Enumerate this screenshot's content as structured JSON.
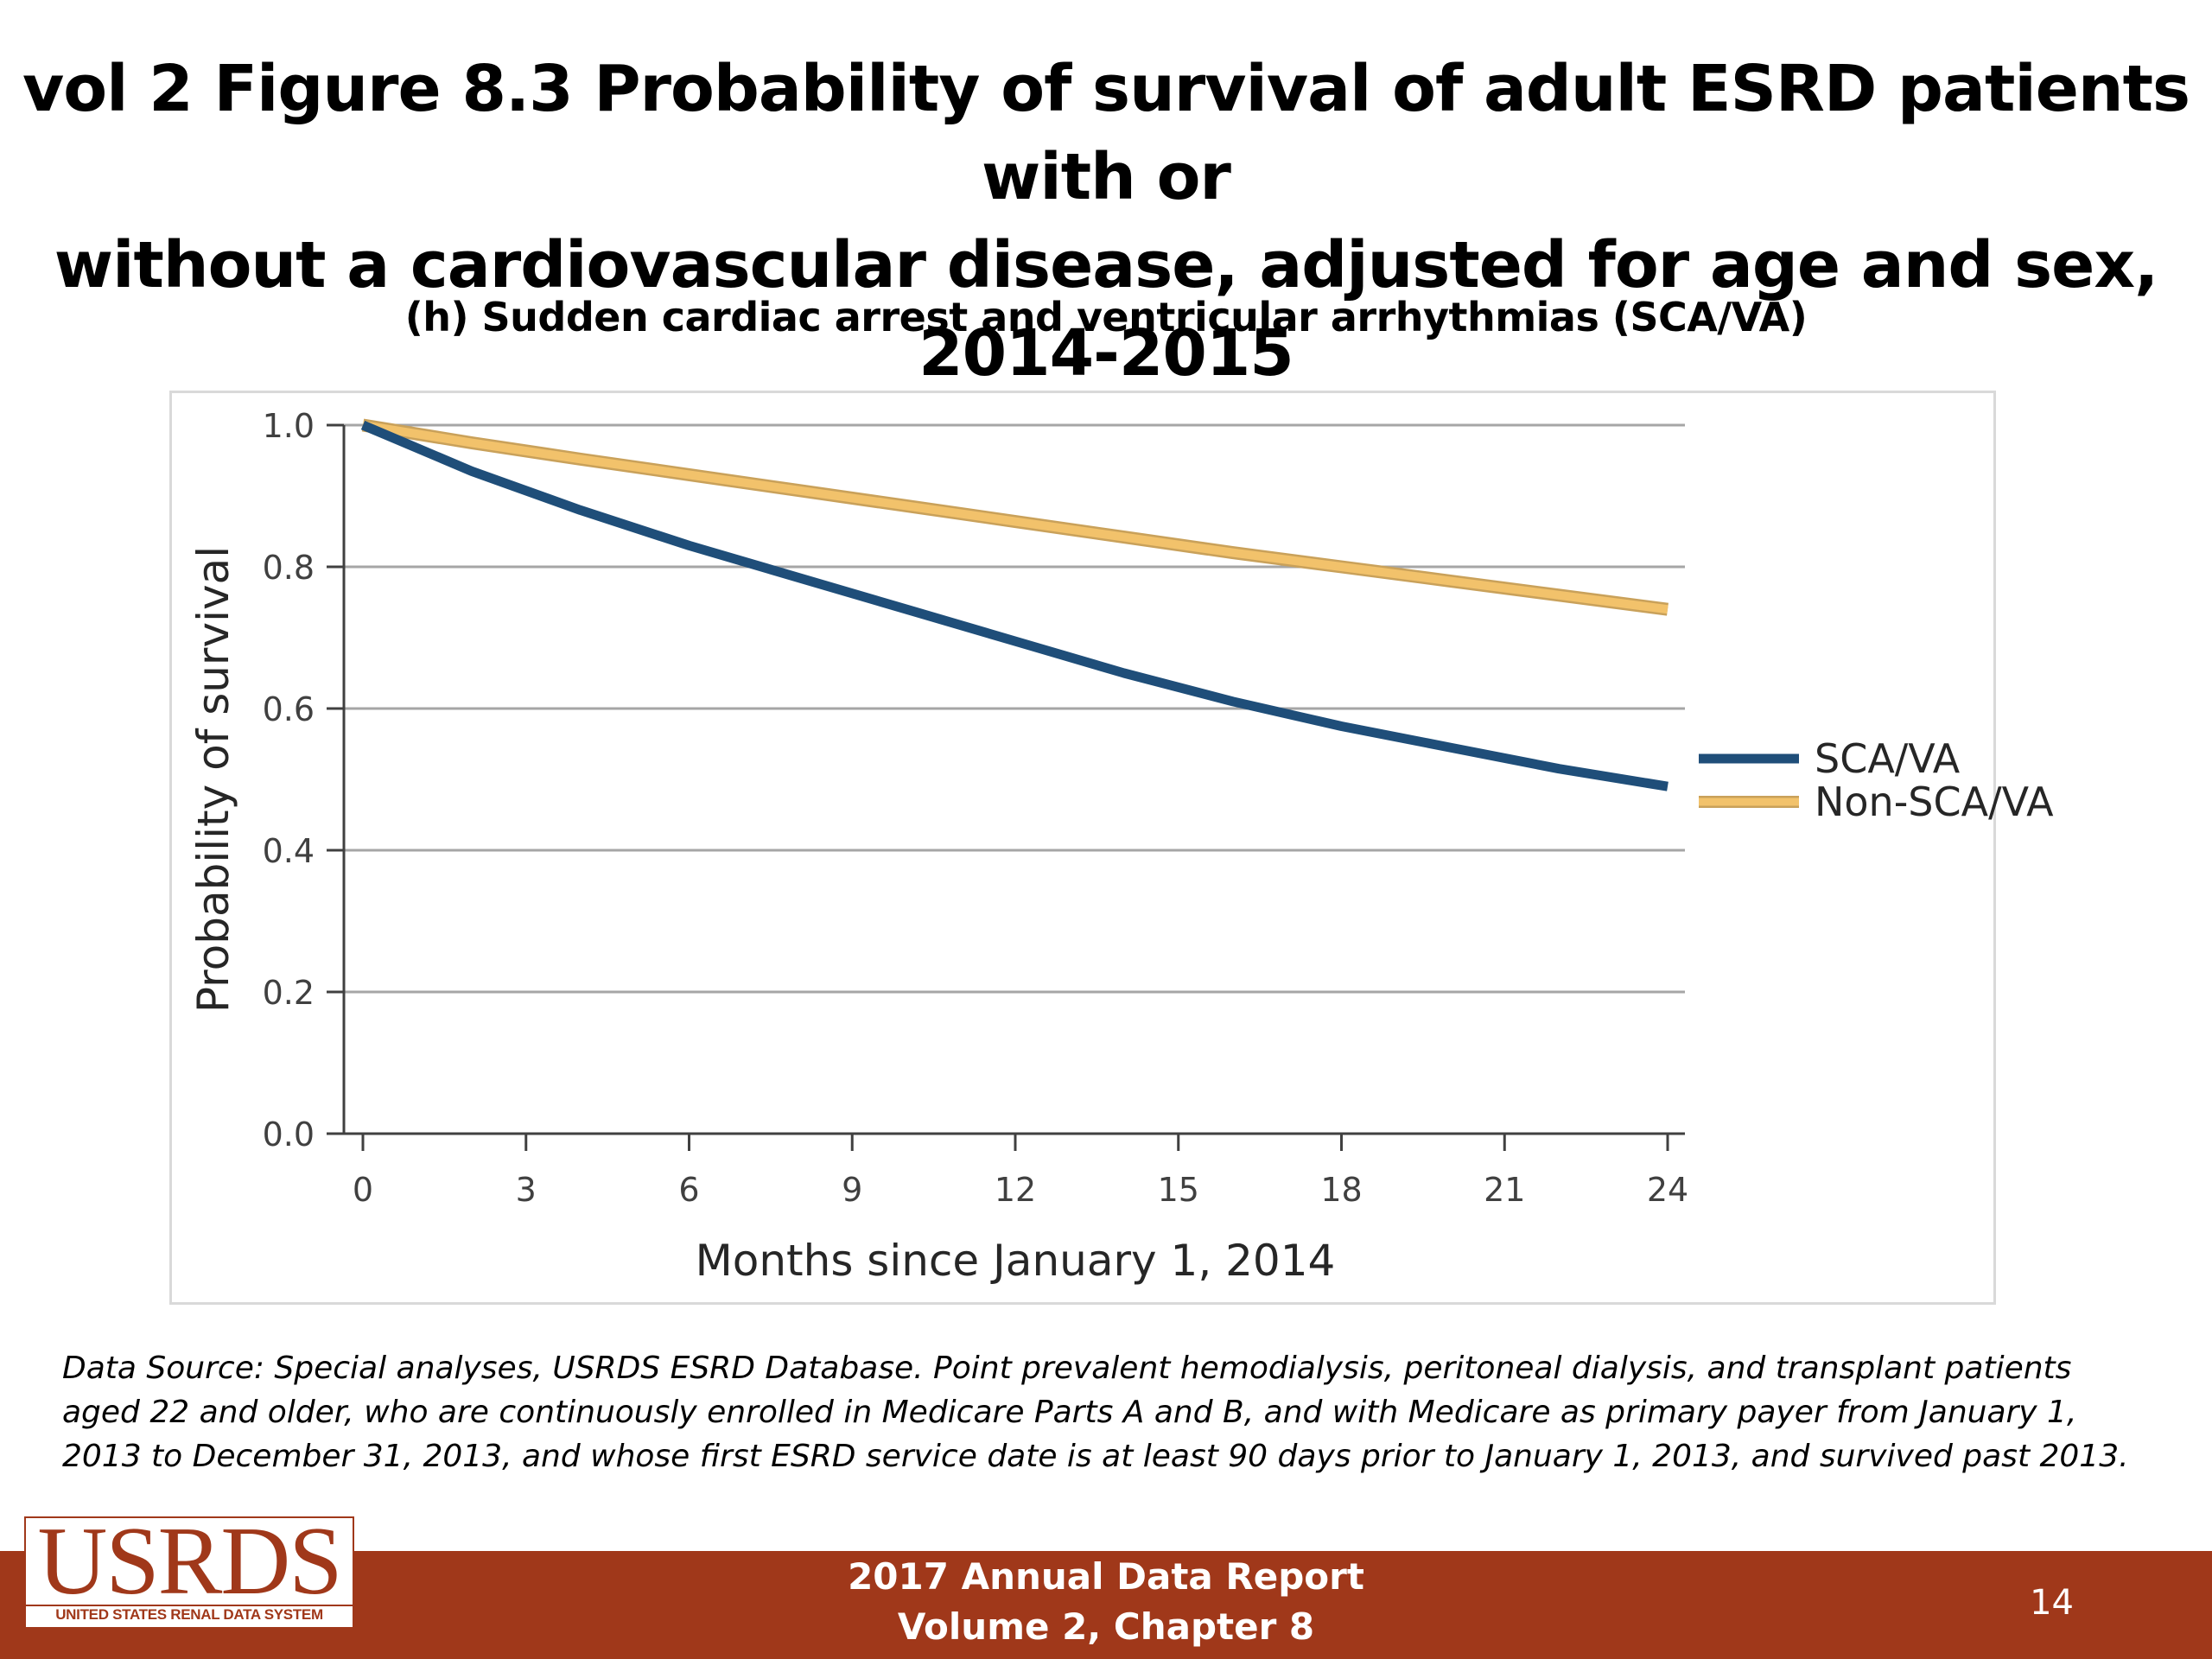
{
  "slide": {
    "title_line1": "vol 2 Figure 8.3 Probability of survival of adult ESRD patients with or",
    "title_line2": "without a cardiovascular disease, adjusted for age and sex, 2014-2015",
    "footnote": "Data Source: Special analyses, USRDS ESRD Database. Point prevalent hemodialysis, peritoneal dialysis, and transplant patients aged 22 and older, who are continuously enrolled in Medicare Parts A and B, and with Medicare as primary payer from January 1, 2013 to December 31, 2013, and whose first ESRD service date is at least 90 days prior to January 1, 2013, and survived past 2013.",
    "footer_line1": "2017 Annual Data Report",
    "footer_line2": "Volume 2, Chapter 8",
    "page_number": "14",
    "logo_text": "USRDS",
    "logo_subtext": "UNITED STATES RENAL DATA SYSTEM",
    "brand_color": "#a0381a"
  },
  "chart_data": {
    "type": "line",
    "title": "(h) Sudden cardiac arrest and ventricular arrhythmias (SCA/VA)",
    "xlabel": "Months since January 1, 2014",
    "ylabel": "Probability of survival",
    "xlim": [
      0,
      24
    ],
    "ylim": [
      0,
      1.0
    ],
    "xticks": [
      0,
      3,
      6,
      9,
      12,
      15,
      18,
      21,
      24
    ],
    "xtick_labels": [
      "0",
      "3",
      "6",
      "9",
      "12",
      "15",
      "18",
      "21",
      "24"
    ],
    "yticks": [
      0,
      0.2,
      0.4,
      0.6,
      0.8,
      1.0
    ],
    "ytick_labels": [
      "0.0",
      "0.2",
      "0.4",
      "0.6",
      "0.8",
      "1.0"
    ],
    "grid": true,
    "legend_position": "right",
    "x": [
      0,
      2,
      4,
      6,
      8,
      10,
      12,
      14,
      16,
      18,
      20,
      22,
      24
    ],
    "series": [
      {
        "name": "SCA/VA",
        "color": "#1f4e79",
        "values": [
          1.0,
          0.935,
          0.88,
          0.83,
          0.785,
          0.74,
          0.695,
          0.65,
          0.61,
          0.575,
          0.545,
          0.515,
          0.49
        ]
      },
      {
        "name": "Non-SCA/VA",
        "color": "#f2c26b",
        "values": [
          1.0,
          0.975,
          0.952,
          0.93,
          0.908,
          0.886,
          0.864,
          0.842,
          0.82,
          0.8,
          0.78,
          0.76,
          0.74
        ]
      }
    ]
  }
}
